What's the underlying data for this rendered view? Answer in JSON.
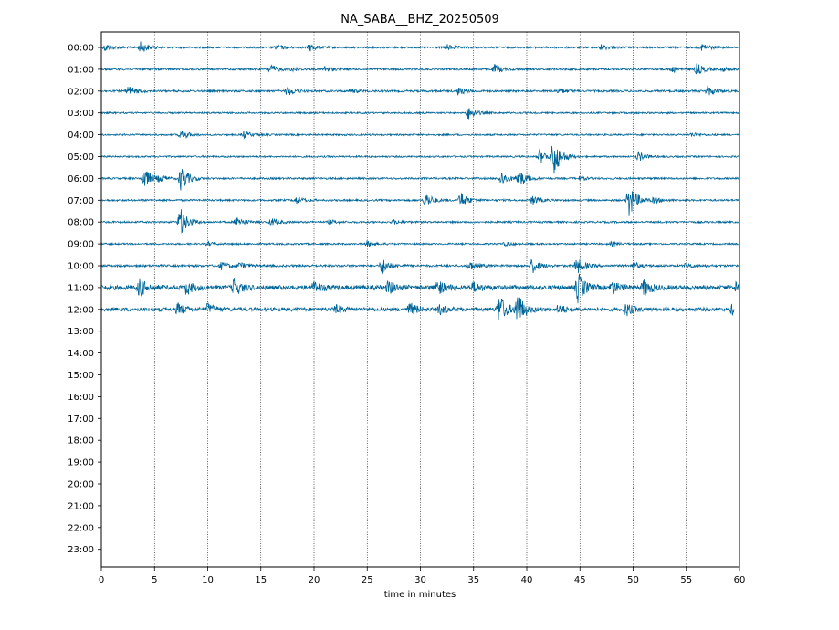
{
  "chart_data": {
    "type": "line",
    "title": "NA_SABA__BHZ_20250509",
    "xlabel": "time in minutes",
    "ylabel": "",
    "xlim": [
      0,
      60
    ],
    "x_ticks": [
      0,
      5,
      10,
      15,
      20,
      25,
      30,
      35,
      40,
      45,
      50,
      55,
      60
    ],
    "x_tick_labels": [
      "0",
      "5",
      "10",
      "15",
      "20",
      "25",
      "30",
      "35",
      "40",
      "45",
      "50",
      "55",
      "60"
    ],
    "hour_labels": [
      "00:00",
      "01:00",
      "02:00",
      "03:00",
      "04:00",
      "05:00",
      "06:00",
      "07:00",
      "08:00",
      "09:00",
      "10:00",
      "11:00",
      "12:00",
      "13:00",
      "14:00",
      "15:00",
      "16:00",
      "17:00",
      "18:00",
      "19:00",
      "20:00",
      "21:00",
      "22:00",
      "23:00"
    ],
    "grid": "vertical dotted lines at each 5-minute tick",
    "line_color": "#006699",
    "series": [
      {
        "hour": "00:00",
        "noise": 1.0,
        "end_min": 60,
        "events": [
          [
            0.4,
            4
          ],
          [
            3.7,
            6
          ],
          [
            16.5,
            3
          ],
          [
            19.6,
            4
          ],
          [
            32.5,
            3
          ],
          [
            47,
            3
          ],
          [
            56.5,
            4
          ]
        ]
      },
      {
        "hour": "01:00",
        "noise": 1.0,
        "end_min": 60,
        "events": [
          [
            15.9,
            5
          ],
          [
            18,
            2
          ],
          [
            21,
            3
          ],
          [
            37,
            5
          ],
          [
            53.6,
            3
          ],
          [
            56,
            6
          ],
          [
            58.5,
            2
          ]
        ]
      },
      {
        "hour": "02:00",
        "noise": 1.1,
        "end_min": 60,
        "events": [
          [
            2.5,
            6
          ],
          [
            17.5,
            5
          ],
          [
            23.5,
            2
          ],
          [
            33.5,
            4
          ],
          [
            43,
            3
          ],
          [
            57,
            5
          ]
        ]
      },
      {
        "hour": "03:00",
        "noise": 0.9,
        "end_min": 60,
        "events": [
          [
            34.5,
            7
          ]
        ]
      },
      {
        "hour": "04:00",
        "noise": 0.9,
        "end_min": 60,
        "events": [
          [
            7.5,
            5
          ],
          [
            13.4,
            4
          ],
          [
            55.5,
            2
          ]
        ]
      },
      {
        "hour": "05:00",
        "noise": 0.9,
        "end_min": 60,
        "events": [
          [
            41.2,
            8
          ],
          [
            42.5,
            22
          ],
          [
            50.5,
            5
          ]
        ]
      },
      {
        "hour": "06:00",
        "noise": 1.0,
        "end_min": 60,
        "events": [
          [
            4,
            12
          ],
          [
            5.5,
            3
          ],
          [
            7.5,
            14
          ],
          [
            37.6,
            8
          ],
          [
            39.2,
            10
          ],
          [
            45,
            2
          ]
        ]
      },
      {
        "hour": "07:00",
        "noise": 1.0,
        "end_min": 60,
        "events": [
          [
            18.3,
            4
          ],
          [
            30.5,
            8
          ],
          [
            33.8,
            9
          ],
          [
            40.5,
            5
          ],
          [
            49.6,
            20
          ],
          [
            52,
            3
          ]
        ]
      },
      {
        "hour": "08:00",
        "noise": 1.0,
        "end_min": 60,
        "events": [
          [
            7.4,
            16
          ],
          [
            12.7,
            6
          ],
          [
            16,
            4
          ],
          [
            21.5,
            2
          ],
          [
            27.5,
            2
          ]
        ]
      },
      {
        "hour": "09:00",
        "noise": 0.9,
        "end_min": 60,
        "events": [
          [
            10,
            2
          ],
          [
            25,
            3
          ],
          [
            38,
            2
          ],
          [
            48,
            2
          ]
        ]
      },
      {
        "hour": "10:00",
        "noise": 1.2,
        "end_min": 60,
        "events": [
          [
            11.3,
            4
          ],
          [
            13,
            3
          ],
          [
            26.4,
            9
          ],
          [
            34.6,
            5
          ],
          [
            40.5,
            8
          ],
          [
            44.7,
            9
          ],
          [
            50,
            4
          ],
          [
            55,
            3
          ]
        ]
      },
      {
        "hour": "11:00",
        "noise": 2.4,
        "end_min": 60,
        "events": [
          [
            3.6,
            10
          ],
          [
            8,
            7
          ],
          [
            12.5,
            9
          ],
          [
            20,
            6
          ],
          [
            27,
            7
          ],
          [
            31.5,
            9
          ],
          [
            35,
            5
          ],
          [
            44.8,
            16
          ],
          [
            48,
            7
          ],
          [
            51,
            9
          ],
          [
            59.8,
            10
          ]
        ]
      },
      {
        "hour": "12:00",
        "noise": 2.0,
        "end_min": 59.5,
        "events": [
          [
            7.2,
            6
          ],
          [
            10,
            6
          ],
          [
            22,
            4
          ],
          [
            29,
            7
          ],
          [
            31.8,
            5
          ],
          [
            37.4,
            16
          ],
          [
            39.1,
            18
          ],
          [
            43,
            5
          ],
          [
            49.3,
            7
          ],
          [
            59.3,
            5
          ]
        ]
      }
    ]
  }
}
